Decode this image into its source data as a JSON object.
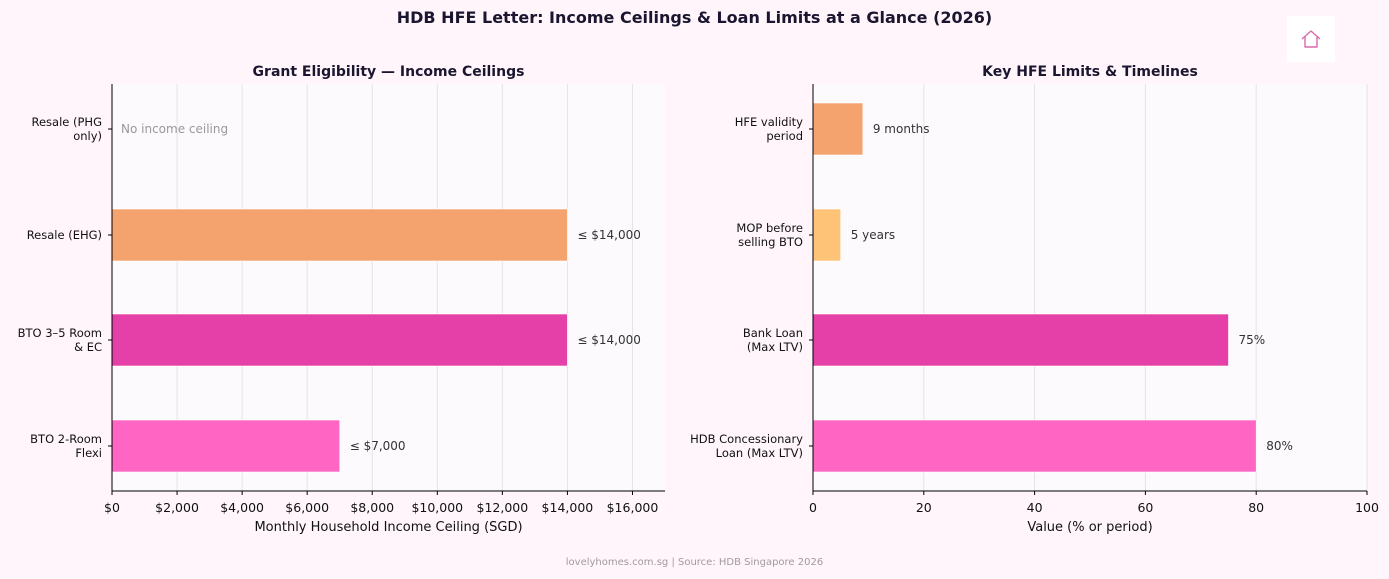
{
  "suptitle": "HDB HFE Letter: Income Ceilings & Loan Limits at a Glance (2026)",
  "footer": "lovelyhomes.com.sg  |  Source: HDB Singapore 2026",
  "home_icon": "house-icon",
  "colors": {
    "background": "#fff5fb",
    "plot_bg": "#fcfafd",
    "grid": "#e4e4e4",
    "pink_light": "#ff66c4",
    "magenta": "#e540a8",
    "orange": "#f4a26e",
    "yellow_orange": "#fec377",
    "home_icon": "#d96aaa"
  },
  "chart_data": [
    {
      "type": "bar",
      "orientation": "horizontal",
      "title": "Grant Eligibility — Income Ceilings",
      "xlabel": "Monthly Household Income Ceiling (SGD)",
      "ylabel": "",
      "xlim": [
        0,
        17000
      ],
      "xticks": [
        0,
        2000,
        4000,
        6000,
        8000,
        10000,
        12000,
        14000,
        16000
      ],
      "xtick_labels": [
        "$0",
        "$2,000",
        "$4,000",
        "$6,000",
        "$8,000",
        "$10,000",
        "$12,000",
        "$14,000",
        "$16,000"
      ],
      "grid": "vertical",
      "categories": [
        [
          "BTO 2-Room",
          "Flexi"
        ],
        [
          "BTO 3–5 Room",
          "& EC"
        ],
        [
          "Resale (EHG)"
        ],
        [
          "Resale (PHG",
          "only)"
        ]
      ],
      "values": [
        7000,
        14000,
        14000,
        0
      ],
      "bar_colors": [
        "#ff66c4",
        "#e540a8",
        "#f4a26e",
        "#fec377"
      ],
      "data_labels": [
        "≤ $7,000",
        "≤ $14,000",
        "≤ $14,000",
        "No income ceiling"
      ],
      "data_label_colors": [
        "#333333",
        "#333333",
        "#333333",
        "#999999"
      ]
    },
    {
      "type": "bar",
      "orientation": "horizontal",
      "title": "Key HFE Limits & Timelines",
      "xlabel": "Value (% or period)",
      "ylabel": "",
      "xlim": [
        0,
        100
      ],
      "xticks": [
        0,
        20,
        40,
        60,
        80,
        100
      ],
      "xtick_labels": [
        "0",
        "20",
        "40",
        "60",
        "80",
        "100"
      ],
      "grid": "vertical",
      "categories": [
        [
          "HDB Concessionary",
          "Loan (Max LTV)"
        ],
        [
          "Bank Loan",
          "(Max LTV)"
        ],
        [
          "MOP before",
          "selling BTO"
        ],
        [
          "HFE validity",
          "period"
        ]
      ],
      "values": [
        80,
        75,
        5,
        9
      ],
      "bar_colors": [
        "#ff66c4",
        "#e540a8",
        "#fec377",
        "#f4a26e"
      ],
      "data_labels": [
        "80%",
        "75%",
        "5 years",
        "9 months"
      ],
      "data_label_colors": [
        "#333333",
        "#333333",
        "#333333",
        "#333333"
      ]
    }
  ]
}
